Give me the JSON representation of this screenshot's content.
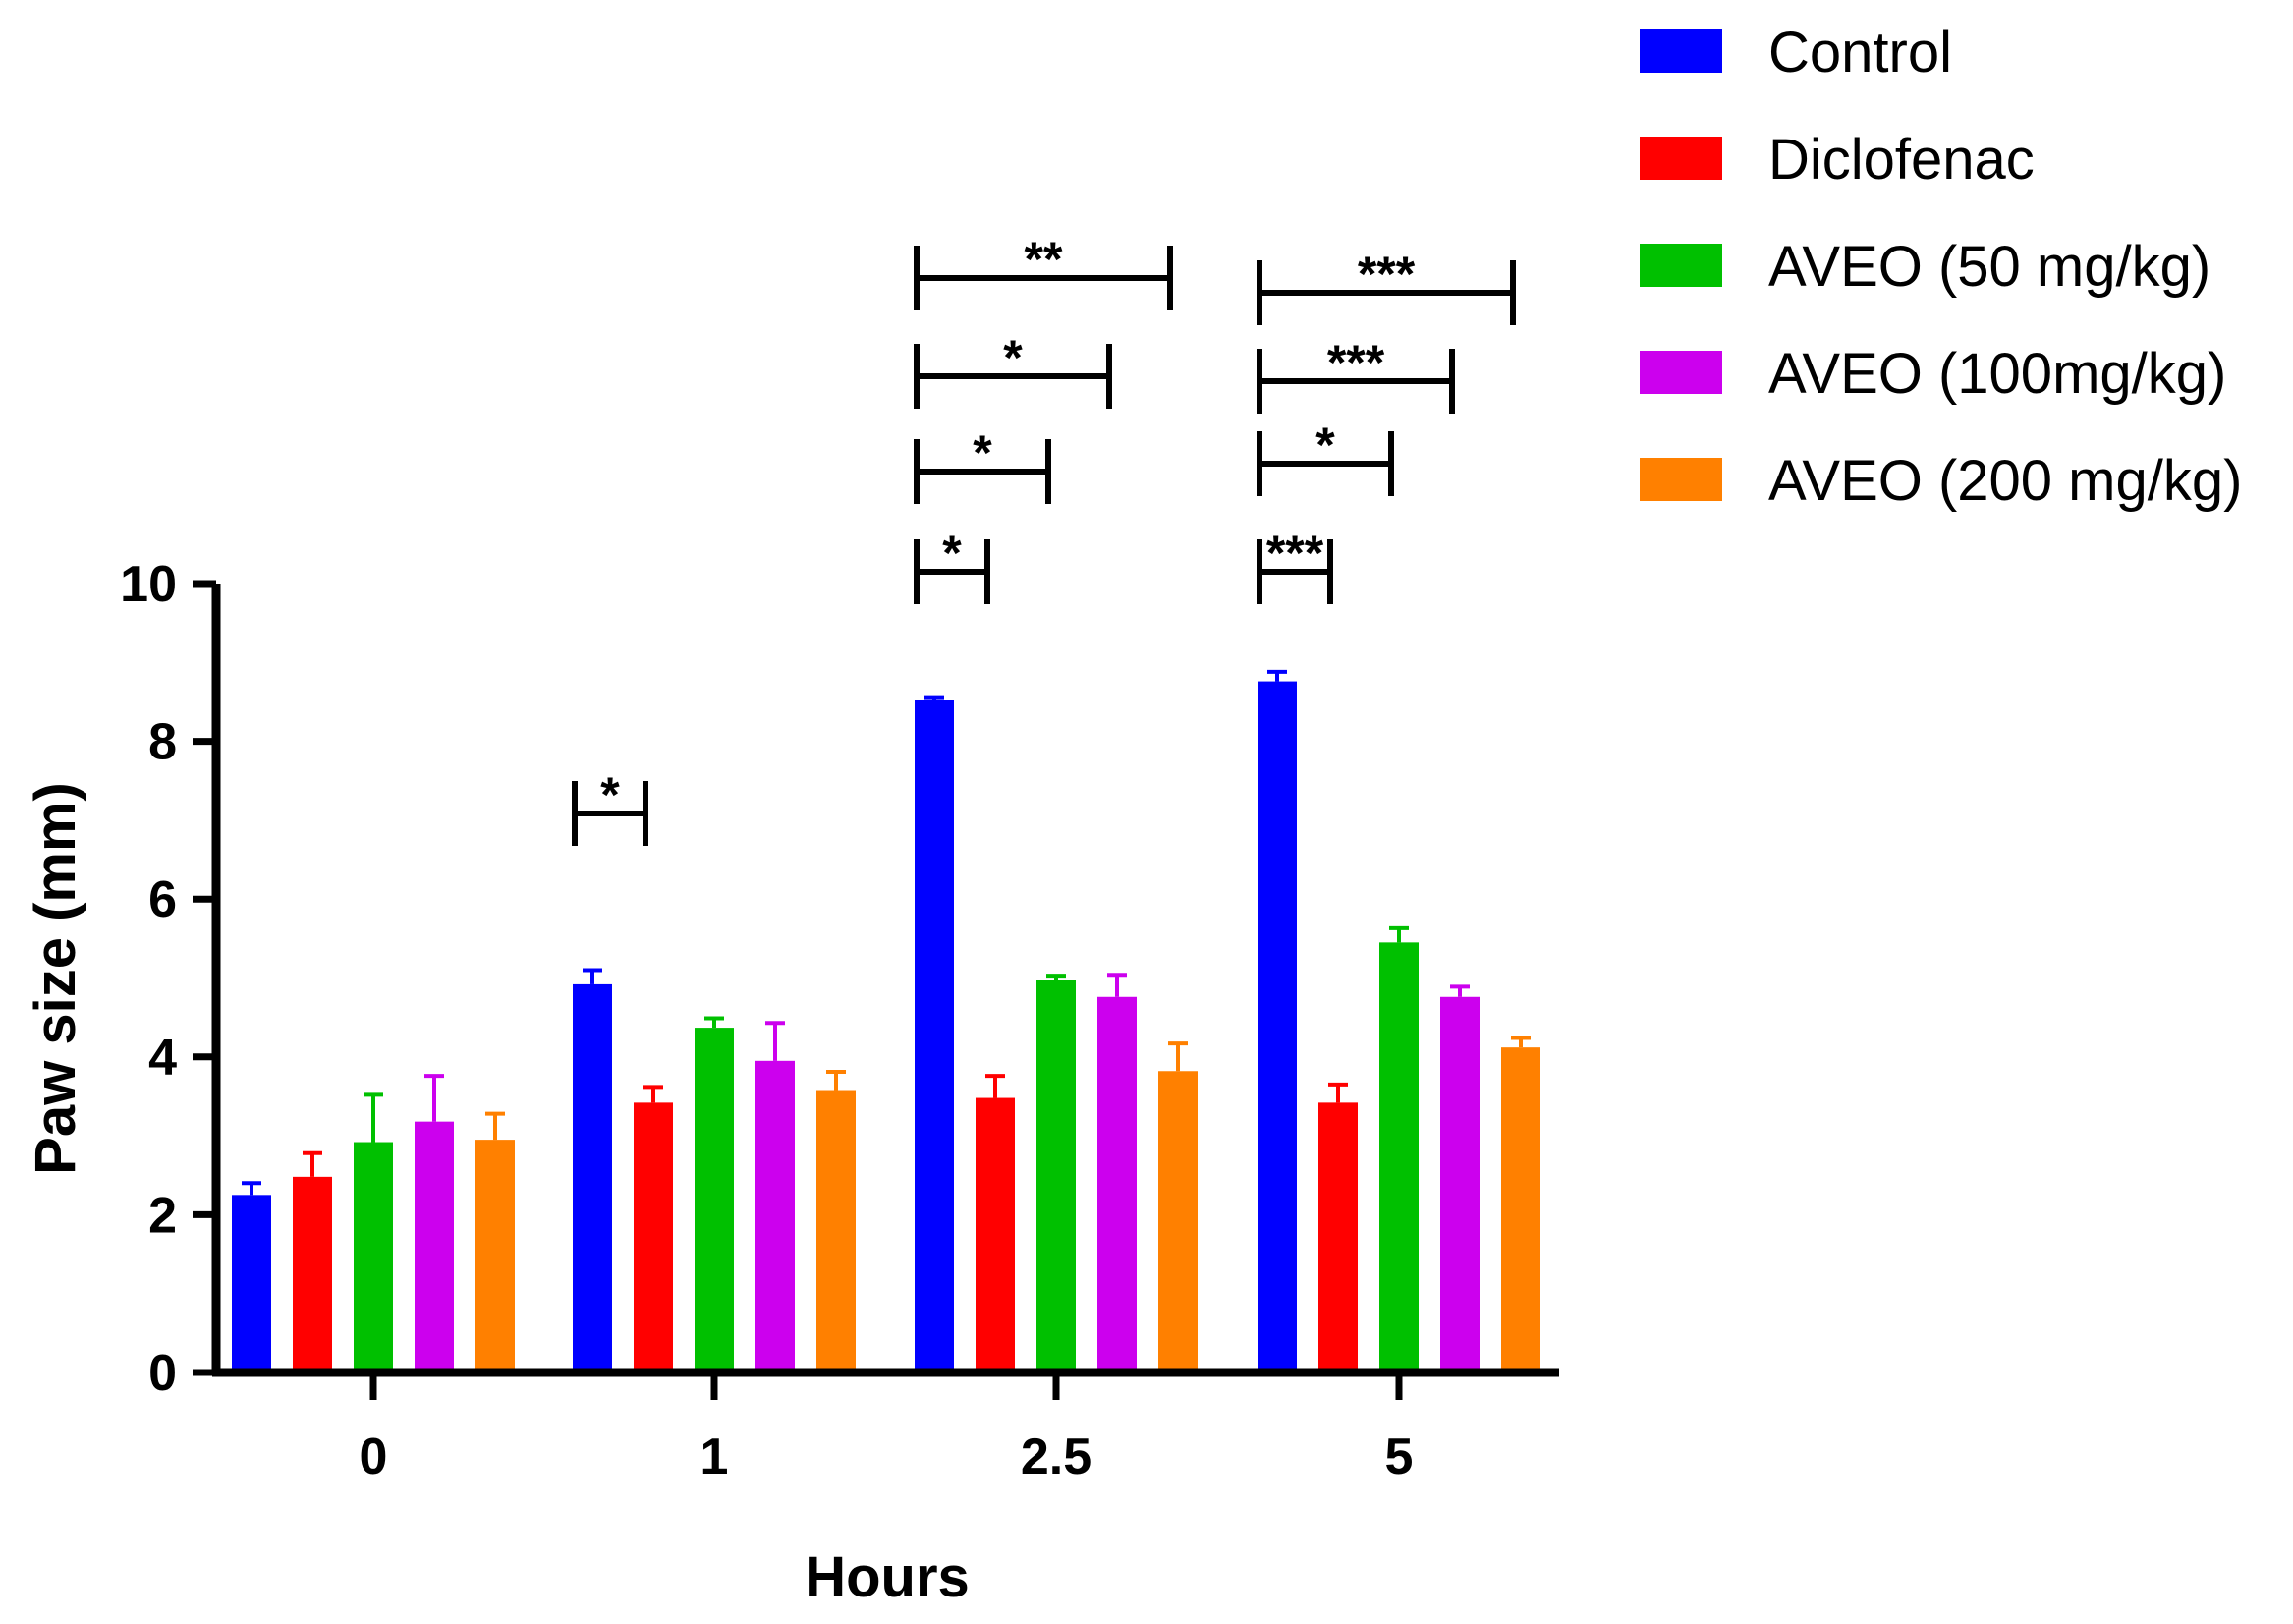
{
  "chart_data": {
    "type": "bar",
    "xlabel": "Hours",
    "ylabel": "Paw size (mm)",
    "ylim": [
      0,
      10
    ],
    "yticks": [
      0,
      2,
      4,
      6,
      8,
      10
    ],
    "categories": [
      "0",
      "1",
      "2.5",
      "5"
    ],
    "legend_position": "top-right",
    "series": [
      {
        "name": "Control",
        "color": "#0000ff",
        "values": [
          2.25,
          4.92,
          8.53,
          8.76
        ],
        "errors": [
          0.15,
          0.18,
          0.03,
          0.12
        ]
      },
      {
        "name": "Diclofenac",
        "color": "#ff0000",
        "values": [
          2.48,
          3.42,
          3.48,
          3.42
        ],
        "errors": [
          0.3,
          0.2,
          0.28,
          0.23
        ]
      },
      {
        "name": "AVEO (50 mg/kg)",
        "color": "#00c000",
        "values": [
          2.92,
          4.37,
          4.98,
          5.45
        ],
        "errors": [
          0.6,
          0.12,
          0.05,
          0.18
        ]
      },
      {
        "name": "AVEO (100mg/kg)",
        "color": "#cc00ee",
        "values": [
          3.18,
          3.95,
          4.76,
          4.76
        ],
        "errors": [
          0.58,
          0.48,
          0.28,
          0.13
        ]
      },
      {
        "name": "AVEO (200 mg/kg)",
        "color": "#ff8000",
        "values": [
          2.95,
          3.58,
          3.82,
          4.12
        ],
        "errors": [
          0.33,
          0.23,
          0.35,
          0.12
        ]
      }
    ],
    "significance": [
      {
        "category": "1",
        "from": "Control",
        "to": "Diclofenac",
        "label": "*",
        "level": 0
      },
      {
        "category": "2.5",
        "from": "Control",
        "to": "Diclofenac",
        "label": "*",
        "level": 0
      },
      {
        "category": "2.5",
        "from": "Control",
        "to": "AVEO (50 mg/kg)",
        "label": "*",
        "level": 1
      },
      {
        "category": "2.5",
        "from": "Control",
        "to": "AVEO (100mg/kg)",
        "label": "*",
        "level": 2
      },
      {
        "category": "2.5",
        "from": "Control",
        "to": "AVEO (200 mg/kg)",
        "label": "**",
        "level": 3
      },
      {
        "category": "5",
        "from": "Control",
        "to": "Diclofenac",
        "label": "***",
        "level": 0
      },
      {
        "category": "5",
        "from": "Control",
        "to": "AVEO (50 mg/kg)",
        "label": "*",
        "level": 1
      },
      {
        "category": "5",
        "from": "Control",
        "to": "AVEO (100mg/kg)",
        "label": "***",
        "level": 2
      },
      {
        "category": "5",
        "from": "Control",
        "to": "AVEO (200 mg/kg)",
        "label": "***",
        "level": 3
      }
    ]
  }
}
